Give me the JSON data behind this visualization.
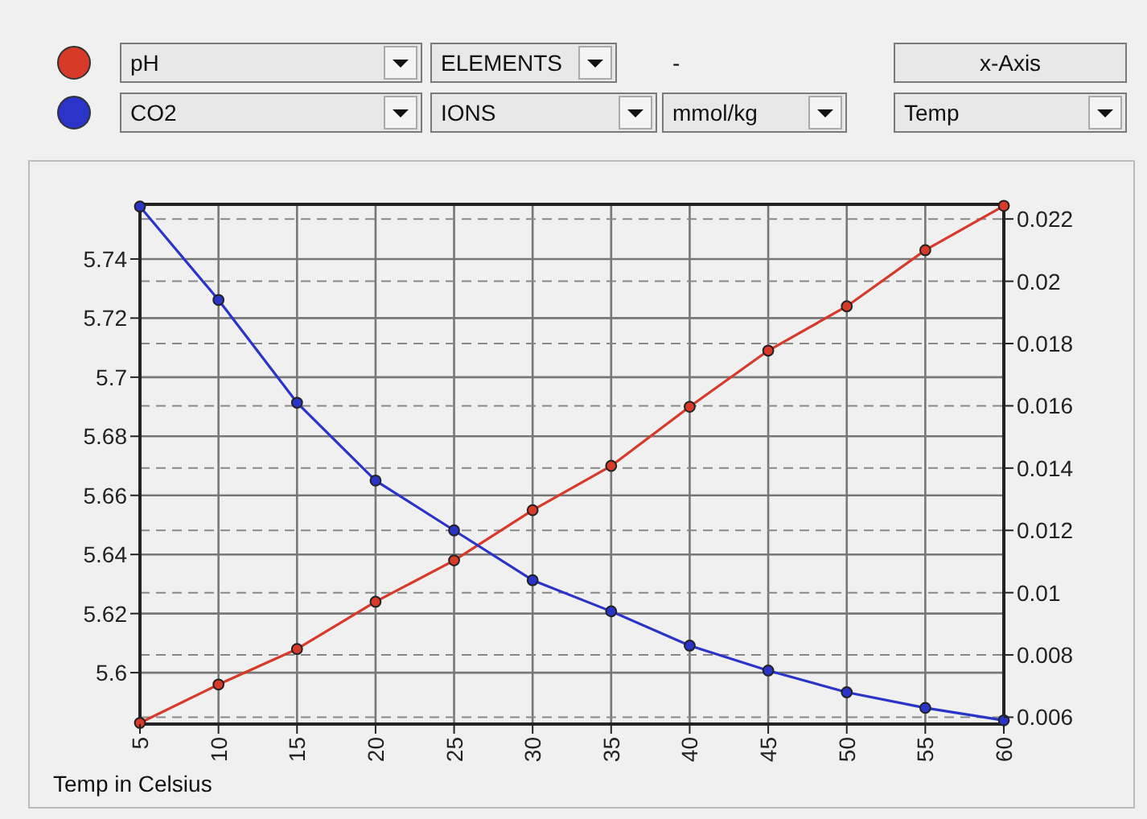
{
  "chart_data": {
    "type": "line",
    "xlabel": "Temp in Celsius",
    "x": [
      5,
      10,
      15,
      20,
      25,
      30,
      35,
      40,
      45,
      50,
      55,
      60
    ],
    "series": [
      {
        "name": "pH",
        "color": "#d83a2a",
        "values": [
          5.583,
          5.596,
          5.608,
          5.624,
          5.638,
          5.655,
          5.67,
          5.69,
          5.709,
          5.724,
          5.743,
          5.758
        ]
      },
      {
        "name": "CO2",
        "color": "#2a34c8",
        "axis": "y2",
        "values": [
          0.0224,
          0.0194,
          0.0161,
          0.0136,
          0.012,
          0.0104,
          0.0094,
          0.0083,
          0.0075,
          0.0068,
          0.0063,
          0.0059
        ]
      }
    ],
    "xlim": [
      5,
      60
    ],
    "xticks": [
      5,
      10,
      15,
      20,
      25,
      30,
      35,
      40,
      45,
      50,
      55,
      60
    ],
    "ylim": [
      5.5826,
      5.7585
    ],
    "yticks": [
      5.6,
      5.62,
      5.64,
      5.66,
      5.68,
      5.7,
      5.72,
      5.74
    ],
    "y2lim": [
      0.00578,
      0.02247
    ],
    "y2ticks": [
      0.006,
      0.008,
      0.01,
      0.012,
      0.014,
      0.016,
      0.018,
      0.02,
      0.022
    ],
    "grid": true,
    "legend": "top left",
    "marker": "circle",
    "line_style": "solid",
    "annotations": [
      "ELEMENTS",
      "-",
      "IONS",
      "mmol/kg",
      "x-Axis",
      "Temp"
    ]
  }
}
